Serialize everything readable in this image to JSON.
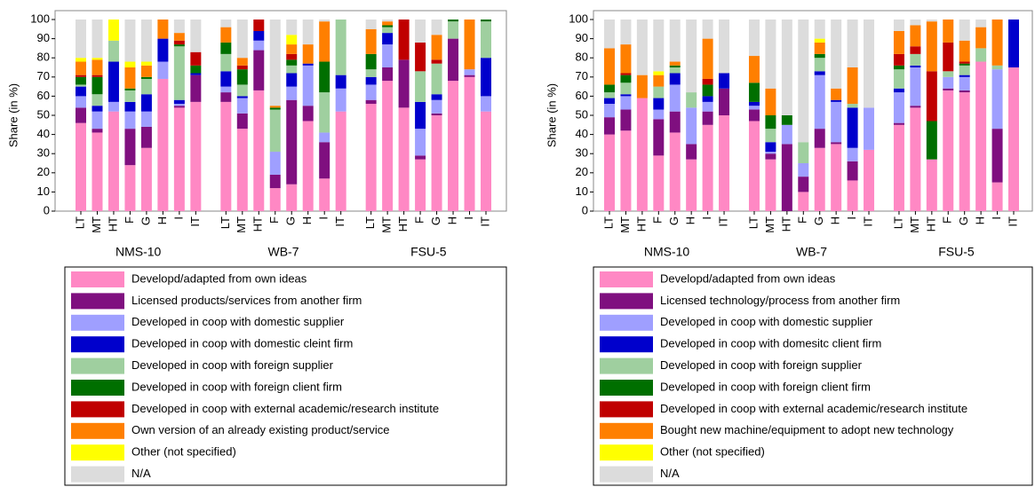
{
  "chart_data": [
    {
      "type": "bar",
      "stacked": true,
      "ylabel": "Share (in %)",
      "categories": [
        "LT",
        "MT",
        "HT",
        "F",
        "G",
        "H",
        "I",
        "IT",
        "LT",
        "MT",
        "HT",
        "F",
        "G",
        "H",
        "I",
        "IT",
        "LT",
        "MT",
        "HT",
        "F",
        "G",
        "H",
        "I",
        "IT"
      ],
      "groups": [
        "NMS-10",
        "WB-7",
        "FSU-5"
      ],
      "ylim": [
        0,
        100
      ],
      "yticks": [
        0,
        10,
        20,
        30,
        40,
        50,
        60,
        70,
        80,
        90,
        100
      ],
      "series": [
        {
          "name": "Developd/adapted from own ideas",
          "color": "#ff88c4",
          "values": [
            46,
            41,
            52,
            24,
            33,
            69,
            54,
            57,
            57,
            43,
            63,
            12,
            14,
            47,
            17,
            52,
            56,
            68,
            54,
            27,
            50,
            68,
            70,
            52
          ]
        },
        {
          "name": "Licensed products/services from another firm",
          "color": "#7f0f7f",
          "values": [
            8,
            2,
            0,
            19,
            11,
            0,
            1,
            14,
            5,
            8,
            21,
            7,
            44,
            8,
            19,
            0,
            2,
            7,
            25,
            2,
            1,
            22,
            1,
            0
          ]
        },
        {
          "name": "Developed in coop with domestic supplier",
          "color": "#9f9fff",
          "values": [
            6,
            9,
            5,
            9,
            8,
            9,
            1,
            0,
            3,
            8,
            5,
            12,
            7,
            21,
            5,
            12,
            8,
            12,
            0,
            14,
            7,
            0,
            3,
            8
          ]
        },
        {
          "name": "Developed in coop with domestic cleint firm",
          "color": "#0000cc",
          "values": [
            5,
            3,
            21,
            5,
            9,
            12,
            2,
            1,
            8,
            1,
            5,
            0,
            7,
            1,
            0,
            7,
            4,
            6,
            0,
            14,
            3,
            0,
            0,
            20
          ]
        },
        {
          "name": "Developed in coop with foreign supplier",
          "color": "#9fcf9f",
          "values": [
            1,
            6,
            11,
            6,
            8,
            0,
            28,
            0,
            9,
            6,
            0,
            22,
            4,
            0,
            21,
            29,
            4,
            3,
            0,
            16,
            16,
            9,
            0,
            19
          ]
        },
        {
          "name": "Developed in coop with foreign client firm",
          "color": "#006f00",
          "values": [
            4,
            9,
            0,
            1,
            1,
            0,
            1,
            4,
            6,
            8,
            0,
            1,
            3,
            0,
            16,
            0,
            8,
            1,
            0,
            0,
            0,
            1,
            0,
            1
          ]
        },
        {
          "name": "Developed in coop with external academic/research institute",
          "color": "#c00000",
          "values": [
            1,
            1,
            0,
            0,
            0,
            0,
            2,
            7,
            0,
            2,
            6,
            0,
            3,
            0,
            0,
            0,
            0,
            0,
            21,
            15,
            2,
            0,
            0,
            0
          ]
        },
        {
          "name": "Own version of an already existing product/service",
          "color": "#ff7f00",
          "values": [
            7,
            8,
            0,
            11,
            6,
            10,
            4,
            0,
            8,
            4,
            0,
            1,
            5,
            10,
            21,
            0,
            13,
            2,
            0,
            0,
            13,
            0,
            26,
            0
          ]
        },
        {
          "name": "Other (not specified)",
          "color": "#ffff00",
          "values": [
            2,
            1,
            11,
            3,
            2,
            0,
            0,
            0,
            0,
            0,
            0,
            0,
            5,
            0,
            0,
            0,
            0,
            0,
            0,
            0,
            0,
            0,
            0,
            0
          ]
        },
        {
          "name": "N/A",
          "color": "#dcdcdc",
          "values": [
            20,
            20,
            0,
            22,
            22,
            0,
            7,
            17,
            4,
            20,
            0,
            45,
            8,
            13,
            1,
            0,
            5,
            1,
            0,
            12,
            8,
            0,
            0,
            0
          ]
        }
      ]
    },
    {
      "type": "bar",
      "stacked": true,
      "ylabel": "Share (in %)",
      "categories": [
        "LT",
        "MT",
        "HT",
        "F",
        "G",
        "H",
        "I",
        "IT",
        "LT",
        "MT",
        "HT",
        "F",
        "G",
        "H",
        "I",
        "IT",
        "LT",
        "MT",
        "HT",
        "F",
        "G",
        "H",
        "I",
        "IT"
      ],
      "groups": [
        "NMS-10",
        "WB-7",
        "FSU-5"
      ],
      "ylim": [
        0,
        100
      ],
      "yticks": [
        0,
        10,
        20,
        30,
        40,
        50,
        60,
        70,
        80,
        90,
        100
      ],
      "series": [
        {
          "name": "Developd/adapted from own ideas",
          "color": "#ff88c4",
          "values": [
            40,
            42,
            59,
            29,
            41,
            27,
            45,
            50,
            47,
            27,
            0,
            10,
            33,
            35,
            16,
            32,
            45,
            54,
            27,
            63,
            62,
            78,
            15,
            75
          ]
        },
        {
          "name": "Licensed technology/process from another firm",
          "color": "#7f0f7f",
          "values": [
            9,
            11,
            0,
            19,
            11,
            8,
            7,
            14,
            6,
            3,
            35,
            8,
            10,
            1,
            10,
            0,
            1,
            1,
            0,
            1,
            1,
            0,
            28,
            0
          ]
        },
        {
          "name": "Developed in coop with domestic supplier",
          "color": "#9f9fff",
          "values": [
            7,
            7,
            0,
            5,
            14,
            19,
            5,
            0,
            2,
            1,
            10,
            7,
            28,
            21,
            7,
            22,
            16,
            20,
            0,
            6,
            7,
            0,
            31,
            0
          ]
        },
        {
          "name": "Developed in coop with domesitc client firm",
          "color": "#0000cc",
          "values": [
            3,
            1,
            0,
            6,
            6,
            0,
            3,
            8,
            2,
            5,
            0,
            0,
            2,
            1,
            21,
            0,
            2,
            1,
            0,
            0,
            1,
            0,
            0,
            25
          ]
        },
        {
          "name": "Developed in coop with foreign supplier",
          "color": "#9fcf9f",
          "values": [
            3,
            6,
            0,
            6,
            3,
            8,
            0,
            0,
            0,
            7,
            0,
            11,
            7,
            0,
            2,
            0,
            10,
            6,
            0,
            3,
            5,
            7,
            2,
            0
          ]
        },
        {
          "name": "Developed in coop with foreign client firm",
          "color": "#006f00",
          "values": [
            4,
            4,
            0,
            0,
            1,
            0,
            6,
            0,
            10,
            7,
            5,
            0,
            2,
            0,
            0,
            0,
            2,
            0,
            20,
            0,
            1,
            0,
            0,
            0
          ]
        },
        {
          "name": "Developed in coop with external academic/research institute",
          "color": "#c00000",
          "values": [
            0,
            1,
            0,
            0,
            0,
            0,
            3,
            0,
            0,
            0,
            0,
            0,
            0,
            0,
            0,
            0,
            6,
            4,
            26,
            15,
            1,
            0,
            0,
            0
          ]
        },
        {
          "name": "Bought new machine/equipment to adopt new technology",
          "color": "#ff7f00",
          "values": [
            19,
            15,
            12,
            6,
            2,
            0,
            21,
            0,
            14,
            14,
            0,
            0,
            6,
            6,
            19,
            0,
            12,
            11,
            26,
            12,
            11,
            11,
            24,
            0
          ]
        },
        {
          "name": "Other (not specified)",
          "color": "#ffff00",
          "values": [
            0,
            0,
            0,
            2,
            0,
            0,
            0,
            0,
            0,
            0,
            0,
            0,
            2,
            0,
            0,
            0,
            0,
            0,
            0,
            0,
            0,
            0,
            0,
            0
          ]
        },
        {
          "name": "N/A",
          "color": "#dcdcdc",
          "values": [
            15,
            13,
            29,
            27,
            22,
            38,
            10,
            28,
            19,
            36,
            50,
            64,
            10,
            36,
            25,
            46,
            6,
            3,
            1,
            0,
            11,
            4,
            0,
            0
          ]
        }
      ]
    }
  ]
}
